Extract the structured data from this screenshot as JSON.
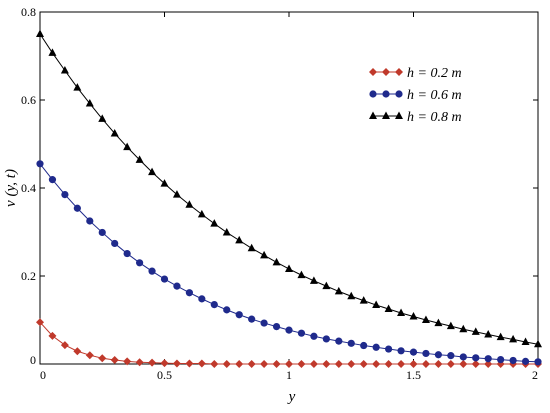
{
  "chart_data": {
    "type": "line",
    "title": "",
    "xlabel": "y",
    "ylabel": "v (y, t)",
    "xlim": [
      0,
      2
    ],
    "ylim": [
      0,
      0.8
    ],
    "xticks": [
      "0",
      "0.5",
      "1",
      "1.5",
      "2"
    ],
    "yticks": [
      "0",
      "0.2",
      "0.4",
      "0.6",
      "0.8"
    ],
    "grid": false,
    "legend_position": "top-right",
    "series": [
      {
        "name": "h = 0.2 m",
        "color": "#c0392b",
        "marker": "diamond",
        "x": [
          0,
          0.05,
          0.1,
          0.15,
          0.2,
          0.25,
          0.3,
          0.35,
          0.4,
          0.45,
          0.5,
          0.55,
          0.6,
          0.65,
          0.7,
          0.75,
          0.8,
          0.85,
          0.9,
          0.95,
          1.0,
          1.05,
          1.1,
          1.15,
          1.2,
          1.25,
          1.3,
          1.35,
          1.4,
          1.45,
          1.5,
          1.55,
          1.6,
          1.65,
          1.7,
          1.75,
          1.8,
          1.85,
          1.9,
          1.95,
          2.0
        ],
        "y": [
          0.095,
          0.064,
          0.043,
          0.029,
          0.02,
          0.013,
          0.009,
          0.006,
          0.004,
          0.003,
          0.002,
          0.001,
          0.001,
          0.001,
          0.0,
          0.0,
          0.0,
          0.0,
          0.0,
          0.0,
          0.0,
          0.0,
          0.0,
          0.0,
          0.0,
          0.0,
          0.0,
          0.0,
          0.0,
          0.0,
          0.0,
          0.0,
          0.0,
          0.0,
          0.0,
          0.0,
          0.0,
          0.0,
          0.0,
          0.0,
          0.0
        ]
      },
      {
        "name": "h = 0.6 m",
        "color": "#1f2a8c",
        "marker": "circle",
        "x": [
          0,
          0.05,
          0.1,
          0.15,
          0.2,
          0.25,
          0.3,
          0.35,
          0.4,
          0.45,
          0.5,
          0.55,
          0.6,
          0.65,
          0.7,
          0.75,
          0.8,
          0.85,
          0.9,
          0.95,
          1.0,
          1.05,
          1.1,
          1.15,
          1.2,
          1.25,
          1.3,
          1.35,
          1.4,
          1.45,
          1.5,
          1.55,
          1.6,
          1.65,
          1.7,
          1.75,
          1.8,
          1.85,
          1.9,
          1.95,
          2.0
        ],
        "y": [
          0.455,
          0.419,
          0.385,
          0.354,
          0.325,
          0.299,
          0.274,
          0.251,
          0.23,
          0.211,
          0.193,
          0.177,
          0.162,
          0.148,
          0.135,
          0.123,
          0.112,
          0.102,
          0.093,
          0.085,
          0.077,
          0.07,
          0.063,
          0.057,
          0.052,
          0.047,
          0.042,
          0.038,
          0.034,
          0.03,
          0.027,
          0.024,
          0.021,
          0.019,
          0.016,
          0.014,
          0.012,
          0.01,
          0.008,
          0.006,
          0.005
        ]
      },
      {
        "name": "h = 0.8 m",
        "color": "#000000",
        "marker": "triangle",
        "x": [
          0,
          0.05,
          0.1,
          0.15,
          0.2,
          0.25,
          0.3,
          0.35,
          0.4,
          0.45,
          0.5,
          0.55,
          0.6,
          0.65,
          0.7,
          0.75,
          0.8,
          0.85,
          0.9,
          0.95,
          1.0,
          1.05,
          1.1,
          1.15,
          1.2,
          1.25,
          1.3,
          1.35,
          1.4,
          1.45,
          1.5,
          1.55,
          1.6,
          1.65,
          1.7,
          1.75,
          1.8,
          1.85,
          1.9,
          1.95,
          2.0
        ],
        "y": [
          0.75,
          0.707,
          0.667,
          0.628,
          0.592,
          0.557,
          0.524,
          0.493,
          0.464,
          0.436,
          0.41,
          0.385,
          0.362,
          0.34,
          0.319,
          0.299,
          0.281,
          0.263,
          0.247,
          0.231,
          0.216,
          0.202,
          0.189,
          0.177,
          0.165,
          0.154,
          0.144,
          0.134,
          0.125,
          0.116,
          0.108,
          0.1,
          0.093,
          0.086,
          0.079,
          0.073,
          0.067,
          0.061,
          0.056,
          0.05,
          0.045
        ]
      }
    ]
  }
}
